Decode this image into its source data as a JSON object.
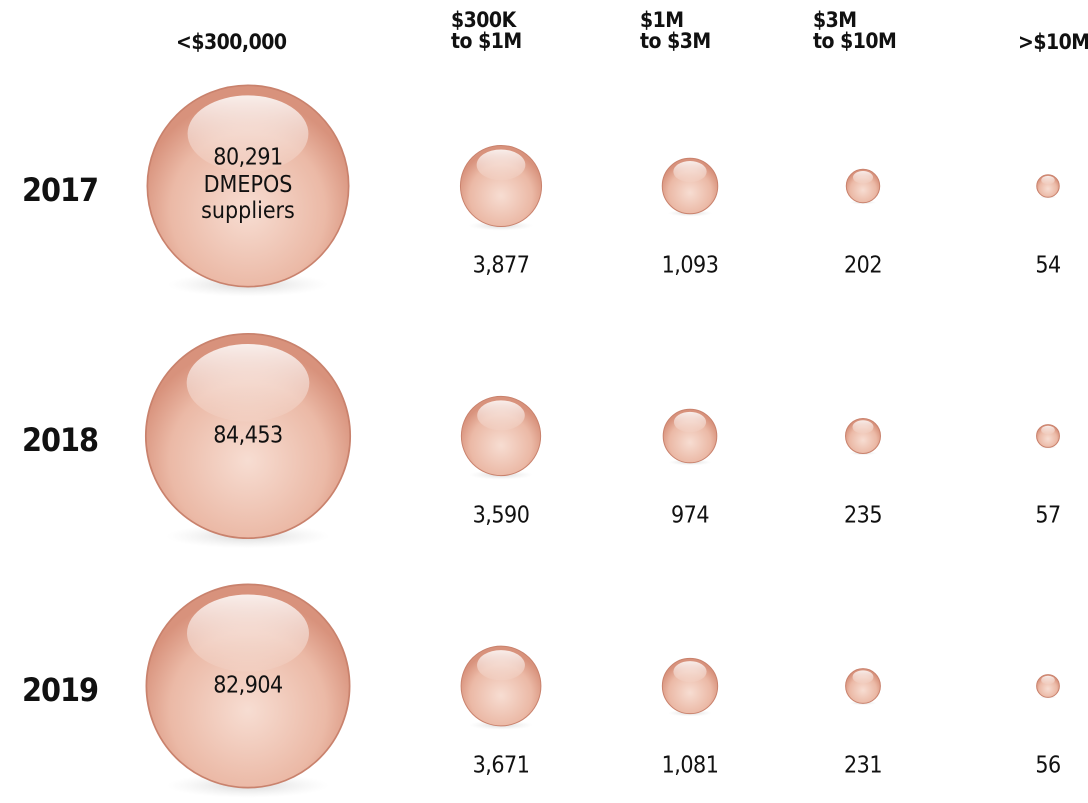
{
  "chart_data": {
    "type": "bubble",
    "categories": [
      "<$300,000",
      "$300K\nto $1M",
      "$1M\nto $3M",
      "$3M\nto $10M",
      ">$10M"
    ],
    "series": [
      {
        "name": "2017",
        "color": "#e3a893",
        "values": [
          80291,
          3877,
          1093,
          202,
          54
        ],
        "value_labels": [
          "80,291",
          "3,877",
          "1,093",
          "202",
          "54"
        ]
      },
      {
        "name": "2018",
        "color": "#e3a893",
        "values": [
          84453,
          3590,
          974,
          235,
          57
        ],
        "value_labels": [
          "84,453",
          "3,590",
          "974",
          "235",
          "57"
        ]
      },
      {
        "name": "2019",
        "color": "#e3a893",
        "values": [
          82904,
          3671,
          1081,
          231,
          56
        ],
        "value_labels": [
          "82,904",
          "3,671",
          "1,081",
          "231",
          "56"
        ]
      }
    ],
    "annotation": "DMEPOS suppliers"
  }
}
